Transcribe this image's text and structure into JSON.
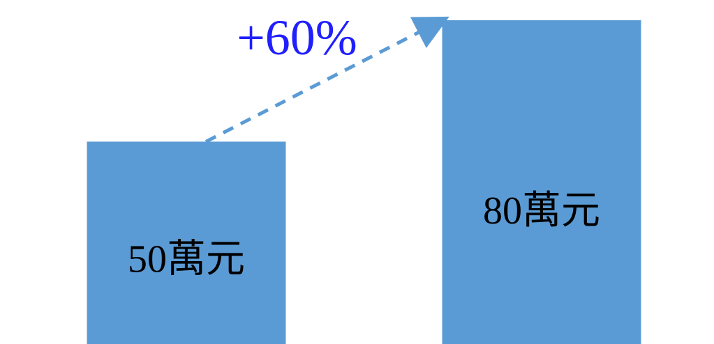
{
  "chart_data": {
    "type": "bar",
    "categories": [
      "",
      ""
    ],
    "values": [
      50,
      80
    ],
    "data_labels": [
      "50萬元",
      "80萬元"
    ],
    "unit": "萬元",
    "annotation": {
      "text": "+60%",
      "from_index": 0,
      "to_index": 1,
      "style": "dashed-arrow"
    },
    "title": "",
    "xlabel": "",
    "ylabel": "",
    "ylim": [
      0,
      85
    ],
    "grid": false,
    "legend": "none"
  },
  "colors": {
    "bar": "#5b9bd5",
    "arrow": "#5b9bd5",
    "annotation_text": "#1f1fff",
    "label_text": "#000000"
  }
}
